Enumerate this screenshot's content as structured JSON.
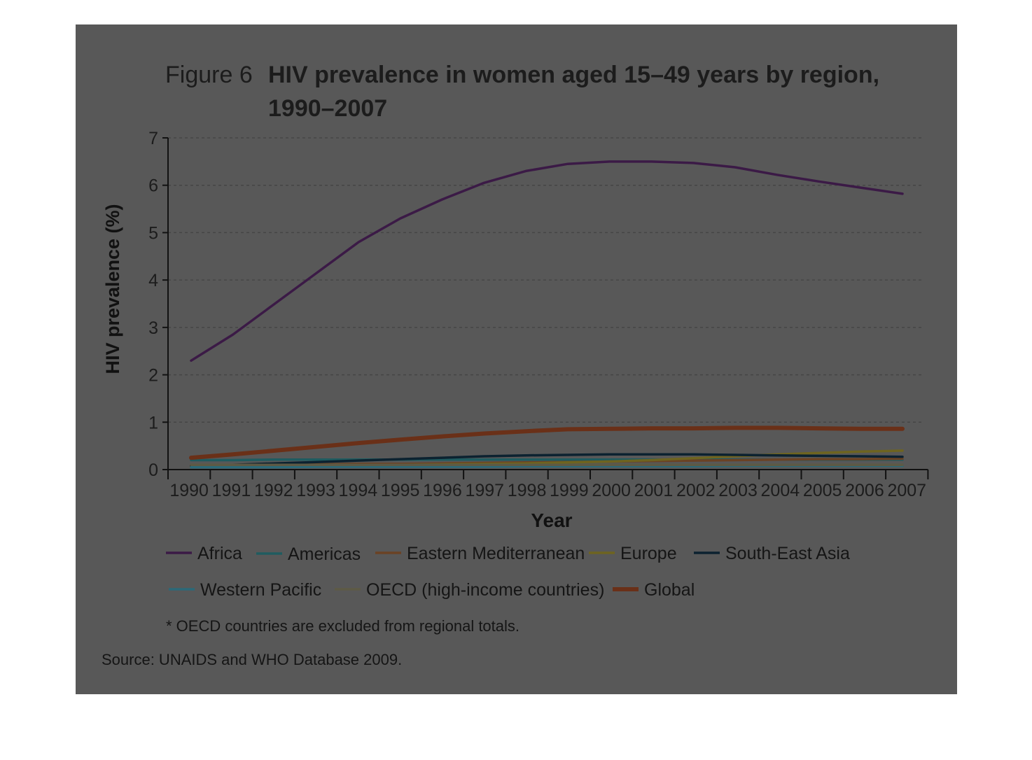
{
  "figure": {
    "prefix": "Figure 6",
    "title_line1": "HIV prevalence in women aged 15–49 years by region,",
    "title_line2": "1990–2007",
    "note": "* OECD countries are excluded from regional totals.",
    "source": "Source: UNAIDS and WHO Database 2009."
  },
  "chart_data": {
    "type": "line",
    "title": "HIV prevalence in women aged 15–49 years by region, 1990–2007",
    "xlabel": "Year",
    "ylabel": "HIV prevalence (%)",
    "ylim": [
      0,
      7
    ],
    "yticks": [
      0,
      1,
      2,
      3,
      4,
      5,
      6,
      7
    ],
    "grid": true,
    "legend_position": "bottom",
    "x": [
      "1990",
      "1991",
      "1992",
      "1993",
      "1994",
      "1995",
      "1996",
      "1997",
      "1998",
      "1999",
      "2000",
      "2001",
      "2002",
      "2003",
      "2004",
      "2005",
      "2006",
      "2007"
    ],
    "series": [
      {
        "name": "Africa",
        "color": "#3b1a46",
        "width": 3.5,
        "values": [
          2.3,
          2.85,
          3.5,
          4.15,
          4.8,
          5.3,
          5.7,
          6.05,
          6.3,
          6.45,
          6.5,
          6.5,
          6.47,
          6.38,
          6.22,
          6.08,
          5.95,
          5.82
        ]
      },
      {
        "name": "Americas",
        "color": "#1f5c60",
        "width": 3.5,
        "values": [
          0.2,
          0.2,
          0.21,
          0.21,
          0.21,
          0.21,
          0.21,
          0.21,
          0.21,
          0.21,
          0.21,
          0.21,
          0.21,
          0.21,
          0.21,
          0.21,
          0.21,
          0.21
        ]
      },
      {
        "name": "Eastern Mediterranean",
        "color": "#6b4224",
        "width": 3.5,
        "values": [
          0.1,
          0.1,
          0.11,
          0.11,
          0.12,
          0.12,
          0.13,
          0.14,
          0.15,
          0.16,
          0.17,
          0.18,
          0.19,
          0.2,
          0.21,
          0.22,
          0.22,
          0.23
        ]
      },
      {
        "name": "Europe",
        "color": "#6e6420",
        "width": 3.5,
        "values": [
          0.07,
          0.08,
          0.08,
          0.09,
          0.1,
          0.1,
          0.11,
          0.12,
          0.13,
          0.15,
          0.17,
          0.2,
          0.24,
          0.28,
          0.32,
          0.35,
          0.38,
          0.4
        ]
      },
      {
        "name": "South-East Asia",
        "color": "#0c2230",
        "width": 3.5,
        "values": [
          0.08,
          0.1,
          0.13,
          0.16,
          0.19,
          0.22,
          0.25,
          0.28,
          0.3,
          0.31,
          0.32,
          0.32,
          0.32,
          0.31,
          0.3,
          0.29,
          0.28,
          0.27
        ]
      },
      {
        "name": "Western Pacific",
        "color": "#2b6978",
        "width": 3.5,
        "values": [
          0.05,
          0.05,
          0.05,
          0.06,
          0.06,
          0.06,
          0.06,
          0.06,
          0.07,
          0.07,
          0.07,
          0.07,
          0.07,
          0.08,
          0.08,
          0.08,
          0.08,
          0.08
        ]
      },
      {
        "name": "OECD (high-income countries)",
        "color": "#5d5a45",
        "width": 3.5,
        "values": [
          0.1,
          0.1,
          0.1,
          0.1,
          0.1,
          0.1,
          0.1,
          0.1,
          0.1,
          0.1,
          0.1,
          0.1,
          0.1,
          0.1,
          0.1,
          0.1,
          0.1,
          0.1
        ]
      },
      {
        "name": "Global",
        "color": "#6a3018",
        "width": 6,
        "values": [
          0.25,
          0.32,
          0.4,
          0.48,
          0.56,
          0.63,
          0.7,
          0.76,
          0.81,
          0.85,
          0.86,
          0.87,
          0.87,
          0.88,
          0.88,
          0.87,
          0.86,
          0.86
        ]
      }
    ]
  }
}
